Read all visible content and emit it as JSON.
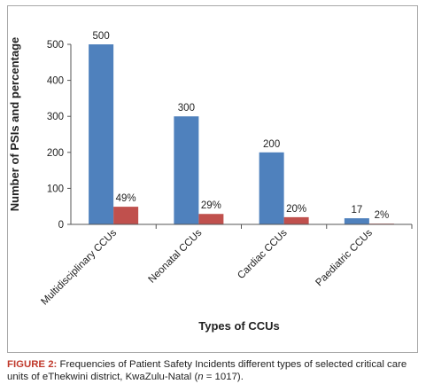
{
  "chart_data": {
    "type": "bar",
    "categories": [
      "Multidisciplinary CCUs",
      "Neonatal CCUs",
      "Cardiac CCUs",
      "Paediatric CCUs"
    ],
    "series": [
      {
        "values": [
          500,
          300,
          200,
          17
        ],
        "labels": [
          "500",
          "300",
          "200",
          "17"
        ],
        "color": "#4f81bd"
      },
      {
        "values": [
          49,
          29,
          20,
          2
        ],
        "labels": [
          "49%",
          "29%",
          "20%",
          "2%"
        ],
        "color": "#c0504d"
      }
    ],
    "title": "",
    "xlabel": "Types of CCUs",
    "ylabel": "Number of PSIs and percentage",
    "ylim": [
      0,
      500
    ],
    "yticks": [
      0,
      100,
      200,
      300,
      400,
      500
    ],
    "grid": false,
    "legend": "none"
  },
  "caption": {
    "label": "FIGURE 2:",
    "text_before": " Frequencies of Patient Safety Incidents different types of selected critical care units of eThekwini district, KwaZulu-Natal (",
    "italic": "n",
    "text_after": " = 1017)."
  }
}
